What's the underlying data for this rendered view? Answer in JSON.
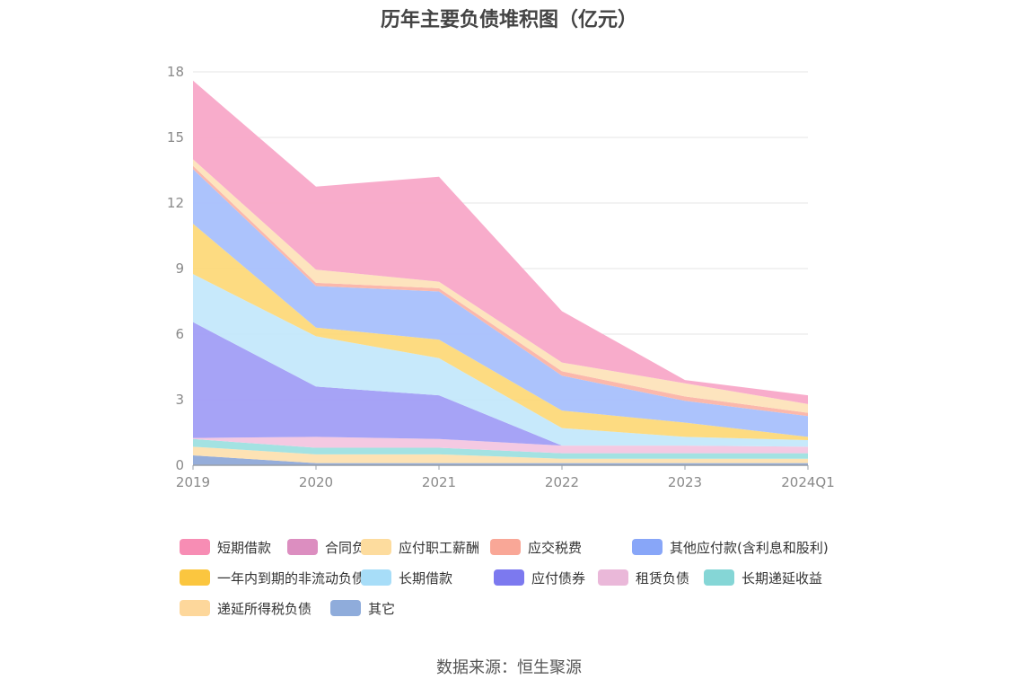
{
  "chart_data": {
    "type": "area",
    "stacked": true,
    "title": "历年主要负债堆积图（亿元）",
    "categories": [
      "2019",
      "2020",
      "2021",
      "2022",
      "2023",
      "2024Q1"
    ],
    "ylim": [
      0,
      18
    ],
    "yticks": [
      "0",
      "3",
      "6",
      "9",
      "12",
      "15",
      "18"
    ],
    "grid": true,
    "legend_position": "bottom",
    "series": [
      {
        "name": "其它",
        "color": "#8fa9d8",
        "values": [
          0.45,
          0.1,
          0.1,
          0.1,
          0.1,
          0.1
        ]
      },
      {
        "name": "递延所得税负债",
        "color": "#fde0b0",
        "values": [
          0.4,
          0.4,
          0.4,
          0.2,
          0.2,
          0.2
        ]
      },
      {
        "name": "长期递延收益",
        "color": "#9ee0e0",
        "values": [
          0.35,
          0.3,
          0.3,
          0.25,
          0.25,
          0.25
        ]
      },
      {
        "name": "租赁负债",
        "color": "#f3c6e0",
        "values": [
          0.05,
          0.5,
          0.4,
          0.35,
          0.35,
          0.3
        ]
      },
      {
        "name": "应付债券",
        "color": "#a19ef5",
        "values": [
          5.3,
          2.3,
          2.0,
          0.0,
          0.0,
          0.0
        ]
      },
      {
        "name": "长期借款",
        "color": "#c4e8fb",
        "values": [
          2.2,
          2.3,
          1.7,
          0.8,
          0.4,
          0.3
        ]
      },
      {
        "name": "一年内到期的非流动负债",
        "color": "#fdd97a",
        "values": [
          2.3,
          0.4,
          0.85,
          0.8,
          0.65,
          0.15
        ]
      },
      {
        "name": "其他应付款(含利息和股利)",
        "color": "#a8c0fc",
        "values": [
          2.5,
          1.9,
          2.2,
          1.6,
          1.0,
          0.95
        ]
      },
      {
        "name": "应交税费",
        "color": "#fbb4a8",
        "values": [
          0.15,
          0.15,
          0.15,
          0.2,
          0.2,
          0.15
        ]
      },
      {
        "name": "应付职工薪酬",
        "color": "#fde3bb",
        "values": [
          0.3,
          0.6,
          0.3,
          0.4,
          0.6,
          0.4
        ]
      },
      {
        "name": "合同负债",
        "color": "#e49ac9",
        "values": [
          0.0,
          0.0,
          0.0,
          0.0,
          0.0,
          0.0
        ]
      },
      {
        "name": "短期借款",
        "color": "#f8a8c8",
        "values": [
          3.6,
          3.8,
          4.8,
          2.35,
          0.15,
          0.4
        ]
      }
    ]
  },
  "legend": [
    {
      "label": "短期借款",
      "color": "#f78db4"
    },
    {
      "label": "合同负债",
      "color": "#dc8ec0"
    },
    {
      "label": "应付职工薪酬",
      "color": "#fddc9e"
    },
    {
      "label": "应交税费",
      "color": "#f9a797"
    },
    {
      "label": "其他应付款(含利息和股利)",
      "color": "#88a6f8"
    },
    {
      "label": "一年内到期的非流动负债",
      "color": "#fbc63f"
    },
    {
      "label": "长期借款",
      "color": "#a7ddf8"
    },
    {
      "label": "应付债券",
      "color": "#7c79ef"
    },
    {
      "label": "租赁负债",
      "color": "#eab8d9"
    },
    {
      "label": "长期递延收益",
      "color": "#85d6d6"
    },
    {
      "label": "递延所得税负债",
      "color": "#fdd79b"
    },
    {
      "label": "其它",
      "color": "#8facdb"
    }
  ],
  "source": "数据来源：恒生聚源"
}
